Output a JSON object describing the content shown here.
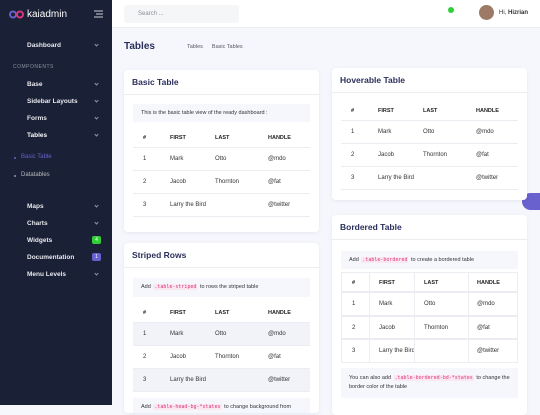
{
  "sidebar": {
    "brand": "kaiadmin",
    "top": [
      "Dashboard"
    ],
    "section": "COMPONENTS",
    "components": [
      "Base",
      "Sidebar Layouts",
      "Forms",
      "Tables"
    ],
    "submenu": [
      "Basic Table",
      "Datatables"
    ],
    "more": [
      {
        "label": "Maps"
      },
      {
        "label": "Charts"
      },
      {
        "label": "Widgets",
        "badge": "4"
      },
      {
        "label": "Documentation",
        "badge": "1"
      },
      {
        "label": "Menu Levels"
      }
    ]
  },
  "header": {
    "search_placeholder": "Search ...",
    "greeting": "Hi,",
    "user": "Hizrian"
  },
  "page": {
    "title": "Tables",
    "breadcrumbs": [
      "Tables",
      "Basic Tables"
    ]
  },
  "cards": [
    {
      "title": "Basic Table",
      "note": [
        "This is the basic table view of the ready dashboard :"
      ],
      "table": {
        "headers": [
          "#",
          "FIRST",
          "LAST",
          "HANDLE"
        ],
        "rows": [
          [
            "1",
            "Mark",
            "Otto",
            "@mdo"
          ],
          [
            "2",
            "Jacob",
            "Thornton",
            "@fat"
          ],
          [
            "3",
            "Larry the Bird",
            "",
            "@twitter"
          ]
        ]
      }
    },
    {
      "title": "Striped Rows",
      "note": [
        "Add ",
        ".table-striped",
        " to rows the striped table"
      ],
      "table": {
        "headers": [
          "#",
          "FIRST",
          "LAST",
          "HANDLE"
        ],
        "rows": [
          [
            "1",
            "Mark",
            "Otto",
            "@mdo"
          ],
          [
            "2",
            "Jacob",
            "Thornton",
            "@fat"
          ],
          [
            "3",
            "Larry the Bird",
            "",
            "@twitter"
          ]
        ]
      },
      "footer": [
        "Add ",
        ".table-head-bg-*states",
        " to change background from"
      ]
    },
    {
      "title": "Hoverable Table",
      "table": {
        "headers": [
          "#",
          "FIRST",
          "LAST",
          "HANDLE"
        ],
        "rows": [
          [
            "1",
            "Mark",
            "Otto",
            "@mdo"
          ],
          [
            "2",
            "Jacob",
            "Thornton",
            "@fat"
          ],
          [
            "3",
            "Larry the Bird",
            "",
            "@twitter"
          ]
        ]
      }
    },
    {
      "title": "Bordered Table",
      "note": [
        "Add ",
        ".table-bordered",
        " to create a bordered table"
      ],
      "table": {
        "headers": [
          "#",
          "FIRST",
          "LAST",
          "HANDLE"
        ],
        "rows": [
          [
            "1",
            "Mark",
            "Otto",
            "@mdo"
          ],
          [
            "2",
            "Jacob",
            "Thornton",
            "@fat"
          ],
          [
            "3",
            "Larry the Bird",
            "",
            "@twitter"
          ]
        ]
      },
      "footer": [
        "You can also add ",
        ".table-bordered-bd-*states",
        " to change the border color of the table"
      ]
    }
  ]
}
